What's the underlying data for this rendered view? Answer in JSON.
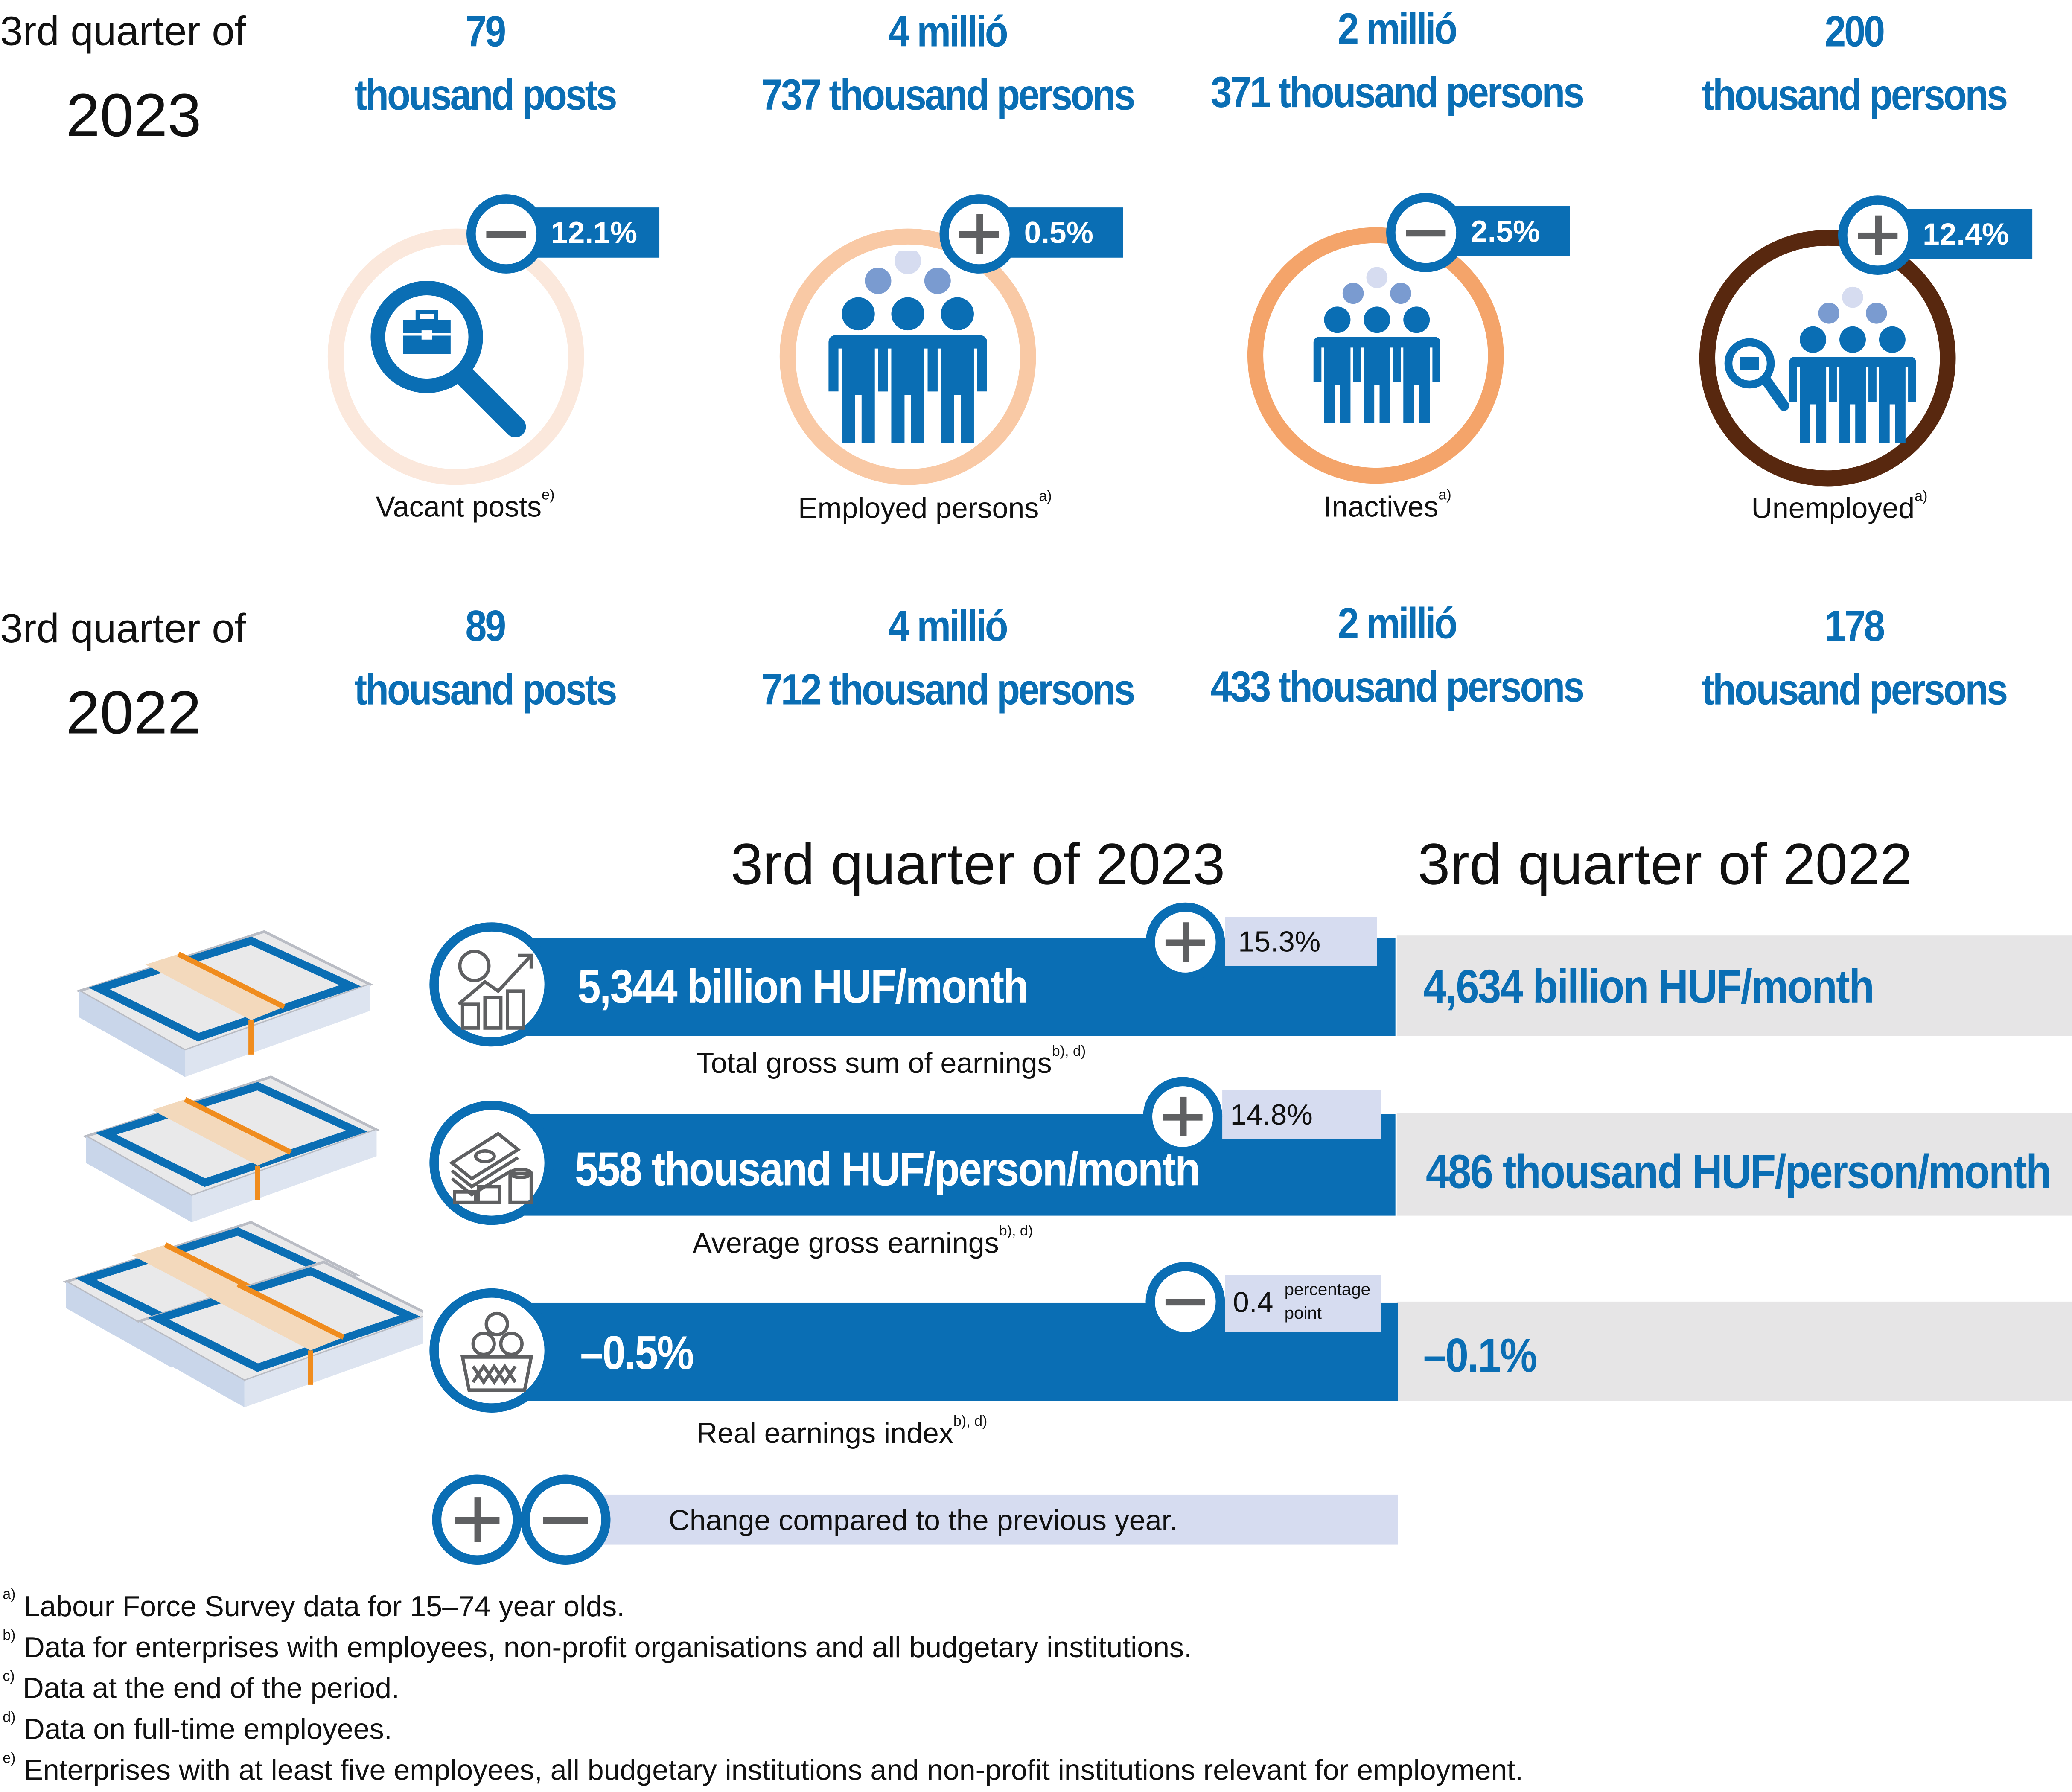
{
  "colors": {
    "blue": "#0a6eb4",
    "vacant_ring": "#fbe8dc",
    "employed_ring": "#f9c9a5",
    "inactive_ring": "#f4a46a",
    "unemployed_ring": "#58280f",
    "gray_bar": "#e6e5e6",
    "light_badge": "#d6dcf0"
  },
  "top": {
    "current": {
      "label": "3rd quarter of",
      "year": "2023"
    },
    "previous": {
      "label": "3rd quarter of",
      "year": "2022"
    },
    "indicators": [
      {
        "name": "Vacant posts",
        "note": "e)",
        "icon": "magnifier-briefcase-icon",
        "sign": "minus",
        "change": "12.1%",
        "current_l1": "79",
        "current_l2": "thousand posts",
        "previous_l1": "89",
        "previous_l2": "thousand posts"
      },
      {
        "name": "Employed persons",
        "note": "a)",
        "icon": "business-people-icon",
        "sign": "plus",
        "change": "0.5%",
        "current_l1": "4 millió",
        "current_l2": "737 thousand persons",
        "previous_l1": "4  millió",
        "previous_l2": "712 thousand persons"
      },
      {
        "name": "Inactives",
        "note": "a)",
        "icon": "people-group-icon",
        "sign": "minus",
        "change": "2.5%",
        "current_l1": "2 millió",
        "current_l2": "371 thousand persons",
        "previous_l1": "2 millió",
        "previous_l2": "433 thousand persons"
      },
      {
        "name": "Unemployed",
        "note": "a)",
        "icon": "job-search-people-icon",
        "sign": "plus",
        "change": "12.4%",
        "current_l1": "200",
        "current_l2": "thousand persons",
        "previous_l1": "178",
        "previous_l2": "thousand persons"
      }
    ]
  },
  "earnings": {
    "header_current": "3rd quarter of 2023",
    "header_previous": "3rd quarter of 2022",
    "rows": [
      {
        "name": "Total gross sum of earnings",
        "note": "b), d)",
        "icon": "rising-earnings-chart-icon",
        "current": "5,344 billion HUF/month",
        "previous": "4,634 billion HUF/month",
        "sign": "plus",
        "change": "15.3%",
        "unit": ""
      },
      {
        "name": "Average gross earnings",
        "note": "b), d)",
        "icon": "banknotes-coins-icon",
        "current": "558 thousand HUF/person/month",
        "previous": "486 thousand HUF/person/month",
        "sign": "plus",
        "change": "14.8%",
        "unit": ""
      },
      {
        "name": "Real earnings index",
        "note": "b), d)",
        "icon": "basket-coins-icon",
        "current": "–0.5%",
        "previous": "–0.1%",
        "sign": "minus",
        "change": "0.4",
        "unit_l1": "percentage",
        "unit_l2": "point"
      }
    ],
    "legend": "Change compared to the previous year."
  },
  "footnotes": [
    {
      "mark": "a)",
      "text": "Labour Force Survey data for 15–74 year olds."
    },
    {
      "mark": "b)",
      "text": "Data for enterprises with employees, non-profit organisations and all budgetary institutions."
    },
    {
      "mark": "c)",
      "text": "Data at the end of the period."
    },
    {
      "mark": "d)",
      "text": "Data on full-time employees."
    },
    {
      "mark": "e)",
      "text": "Enterprises with at least five employees, all budgetary institutions and non-profit institutions relevant for employment."
    }
  ]
}
